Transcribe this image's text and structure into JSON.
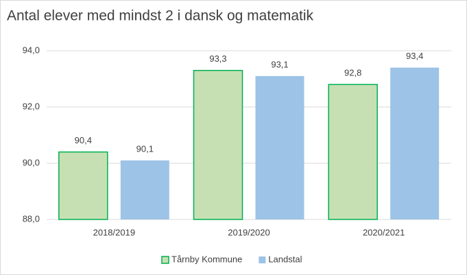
{
  "chart_data": {
    "type": "bar",
    "title": "Antal elever med mindst 2 i dansk og matematik",
    "categories": [
      "2018/2019",
      "2019/2020",
      "2020/2021"
    ],
    "series": [
      {
        "name": "Tårnby Kommune",
        "color": "#c6e0b4",
        "edgecolor": "#00b050",
        "values": [
          90.4,
          93.3,
          92.8
        ],
        "value_labels": [
          "90,4",
          "93,3",
          "92,8"
        ]
      },
      {
        "name": "Landstal",
        "color": "#9dc3e6",
        "values": [
          90.1,
          93.1,
          93.4
        ],
        "value_labels": [
          "90,1",
          "93,1",
          "93,4"
        ]
      }
    ],
    "ylim": [
      88,
      94
    ],
    "yticks": [
      {
        "value": 88,
        "label": "88,0"
      },
      {
        "value": 90,
        "label": "90,0"
      },
      {
        "value": 92,
        "label": "92,0"
      },
      {
        "value": 94,
        "label": "94,0"
      }
    ],
    "grid": true,
    "legend": "bottom"
  }
}
